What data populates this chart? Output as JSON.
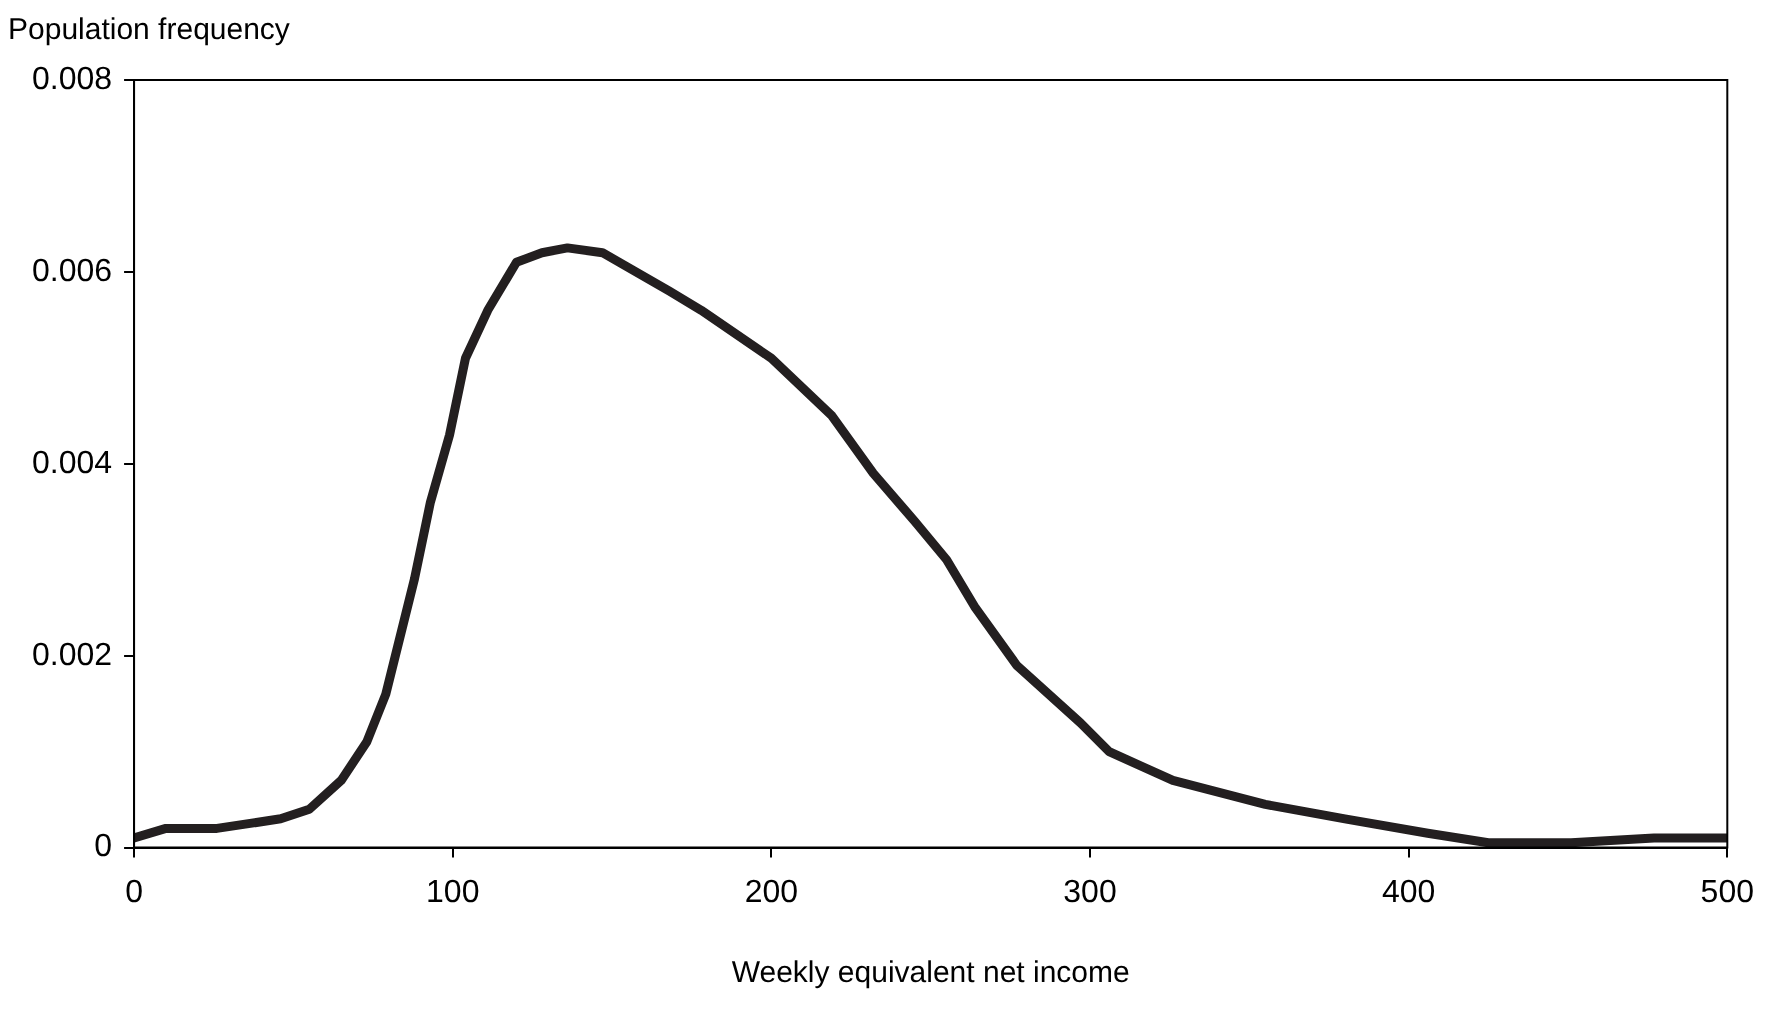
{
  "chart_data": {
    "type": "line",
    "xlabel": "Weekly equivalent net income",
    "ylabel": "Population frequency",
    "x": [
      0,
      10,
      26,
      46,
      55,
      65,
      73,
      79,
      88,
      93,
      99,
      104,
      111,
      120,
      128,
      136,
      147,
      168,
      178,
      200,
      219,
      232,
      245,
      255,
      264,
      277,
      297,
      306,
      326,
      355,
      380,
      406,
      425,
      451,
      477,
      500
    ],
    "series": [
      {
        "color": "#231f20",
        "values": [
          0.0001,
          0.0002,
          0.0002,
          0.0003,
          0.0004,
          0.0007,
          0.0011,
          0.0016,
          0.0028,
          0.0036,
          0.0043,
          0.0051,
          0.0056,
          0.0061,
          0.0062,
          0.00625,
          0.0062,
          0.0058,
          0.0056,
          0.0051,
          0.0045,
          0.0039,
          0.0034,
          0.003,
          0.0025,
          0.0019,
          0.0013,
          0.001,
          0.0007,
          0.00045,
          0.0003,
          0.00015,
          5e-05,
          5e-05,
          0.0001,
          0.0001
        ]
      }
    ],
    "xlim": [
      0,
      500
    ],
    "xticks": [
      0,
      100,
      200,
      300,
      400,
      500
    ],
    "ylim": [
      0,
      0.008
    ],
    "yticks": [
      0,
      0.002,
      0.004,
      0.006,
      0.008
    ],
    "grid": false,
    "legend": false,
    "marker": "none",
    "line_style": "solid"
  }
}
